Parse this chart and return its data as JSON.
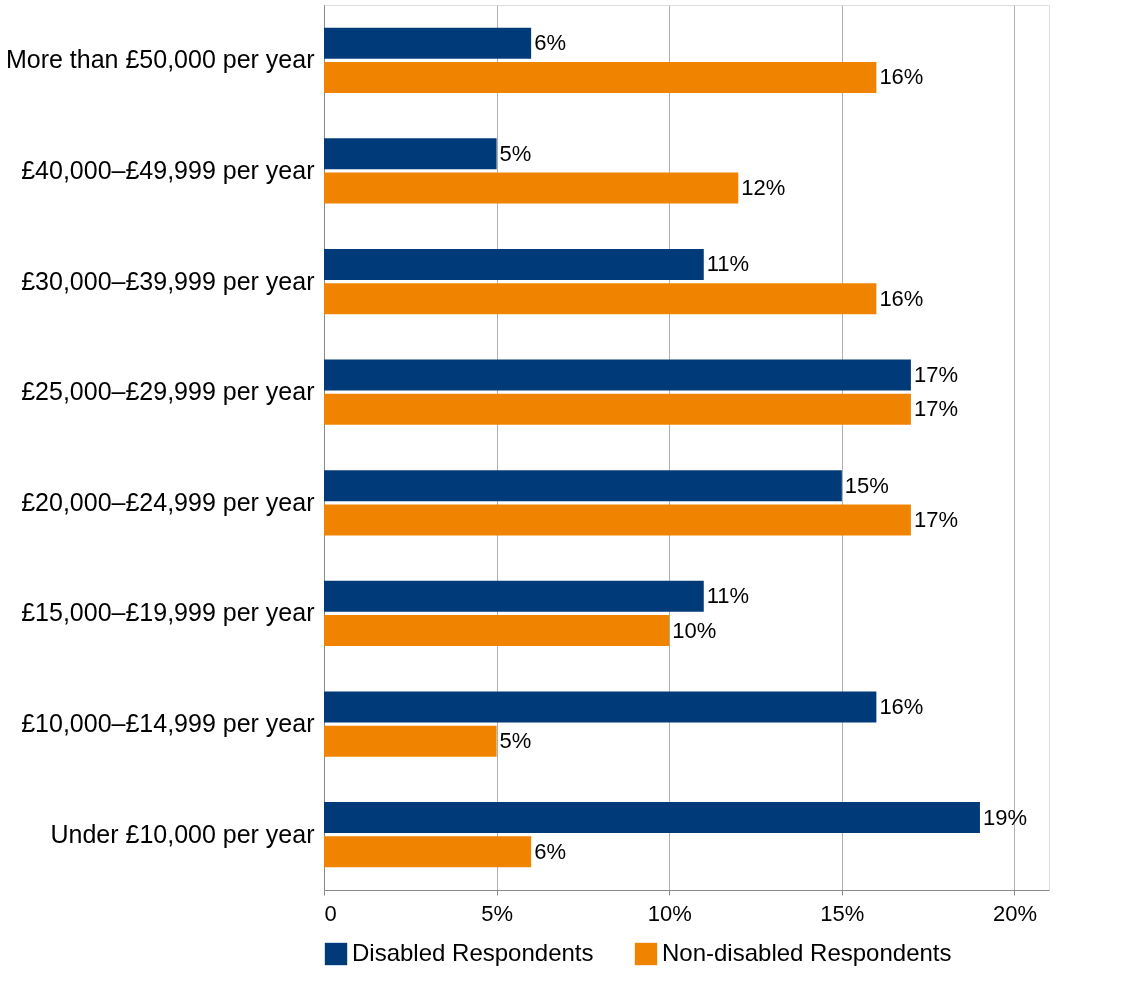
{
  "chart_data": {
    "type": "bar",
    "orientation": "horizontal",
    "categories": [
      "More than £50,000 per year",
      "£40,000–£49,999 per year",
      "£30,000–£39,999 per year",
      "£25,000–£29,999 per year",
      "£20,000–£24,999 per year",
      "£15,000–£19,999 per year",
      "£10,000–£14,999 per year",
      "Under £10,000 per year"
    ],
    "series": [
      {
        "name": "Disabled Respondents",
        "color": "#003a78",
        "values": [
          6,
          5,
          11,
          17,
          15,
          11,
          16,
          19
        ],
        "value_labels": [
          "6%",
          "5%",
          "11%",
          "17%",
          "15%",
          "11%",
          "16%",
          "19%"
        ]
      },
      {
        "name": "Non-disabled Respondents",
        "color": "#f08300",
        "values": [
          16,
          12,
          16,
          17,
          17,
          10,
          5,
          6
        ],
        "value_labels": [
          "16%",
          "12%",
          "16%",
          "17%",
          "17%",
          "10%",
          "5%",
          "6%"
        ]
      }
    ],
    "xlim": [
      0,
      21
    ],
    "xticks": [
      0,
      {
        "value": 5,
        "label": "5%"
      },
      {
        "value": 10,
        "label": "10%"
      },
      {
        "value": 15,
        "label": "15%"
      },
      {
        "value": 20,
        "label": "20%"
      }
    ],
    "grid": "x",
    "legend": "bottom"
  }
}
